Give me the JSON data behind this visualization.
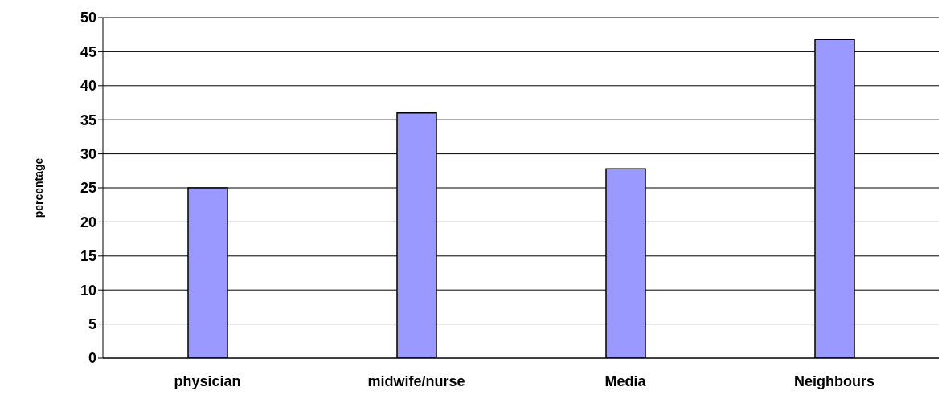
{
  "chart_data": {
    "type": "bar",
    "ylabel": "percentage",
    "categories": [
      "physician",
      "midwife/nurse",
      "Media",
      "Neighbours"
    ],
    "values": [
      25,
      36,
      27.8,
      46.8
    ],
    "color": "#9999ff",
    "ylim": [
      0,
      50
    ],
    "yticks": [
      0,
      5,
      10,
      15,
      20,
      25,
      30,
      35,
      40,
      45,
      50
    ],
    "grid": "y"
  }
}
